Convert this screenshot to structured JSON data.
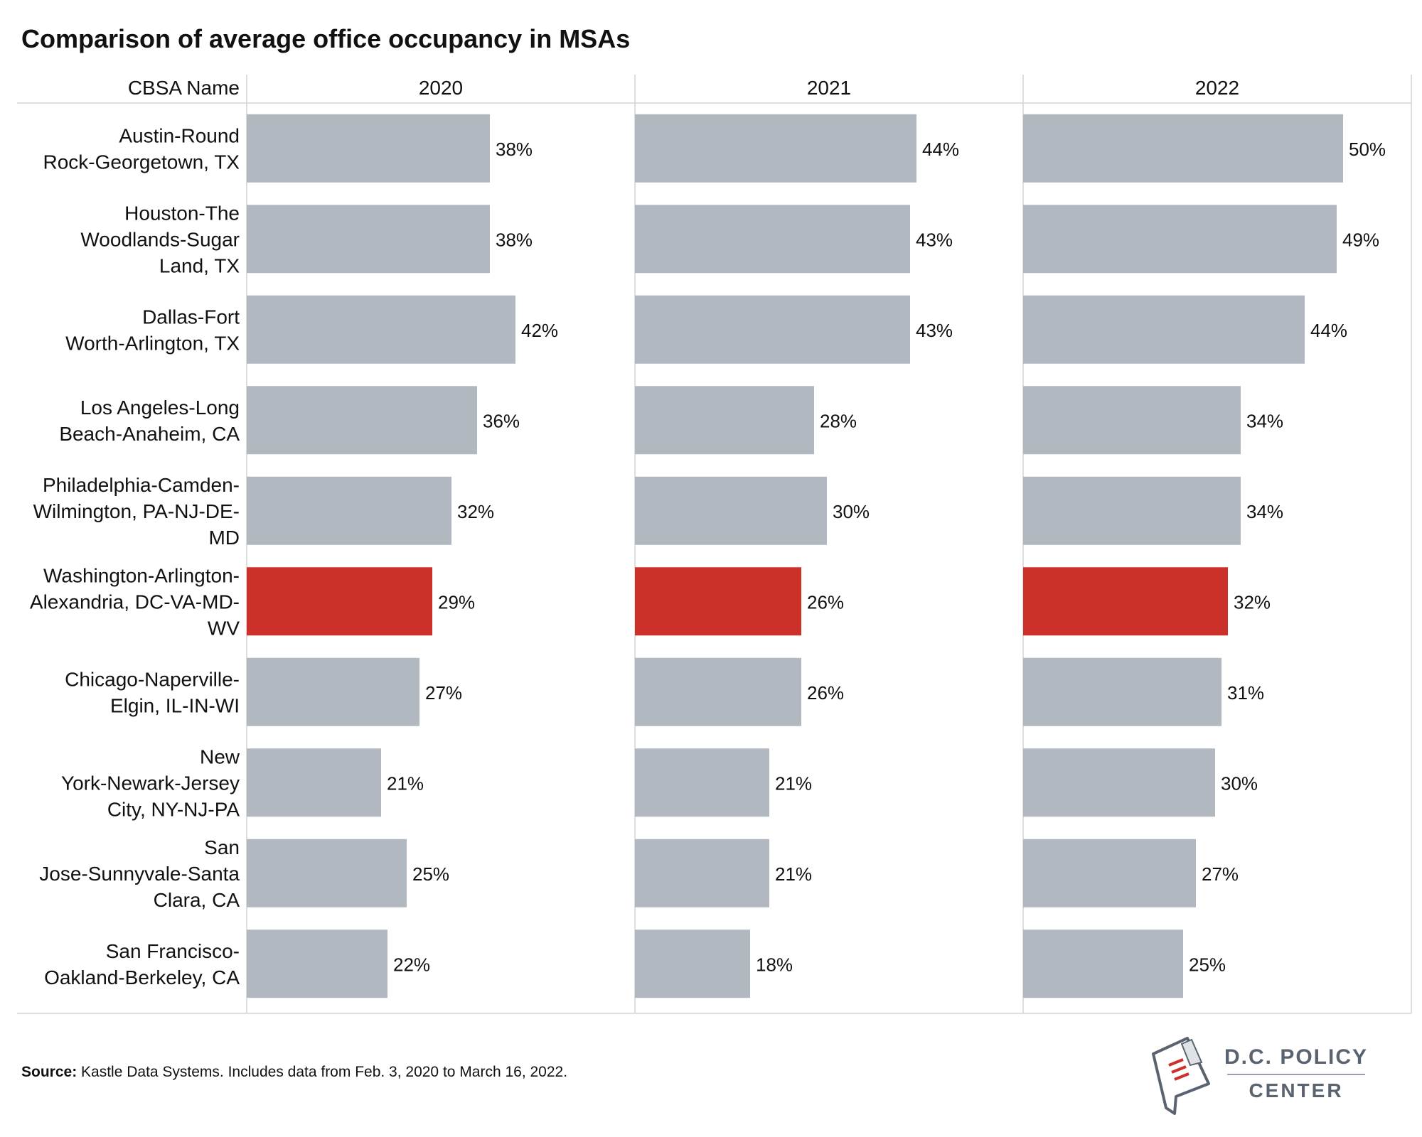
{
  "title": "Comparison of average office occupancy in MSAs",
  "source": {
    "label": "Source:",
    "text": " Kastle Data Systems. Includes data from Feb. 3, 2020 to March 16, 2022."
  },
  "logo": {
    "line1": "D.C. POLICY",
    "line2": "CENTER"
  },
  "colors": {
    "default_bar": "#b1b8bf",
    "highlight_bar": "#cb3029",
    "grid": "#d4d4d4"
  },
  "chart_data": {
    "type": "bar",
    "orientation": "horizontal",
    "category_header": "CBSA Name",
    "categories": [
      [
        "Austin-Round",
        "Rock-Georgetown, TX"
      ],
      [
        "Houston-The",
        "Woodlands-Sugar",
        "Land, TX"
      ],
      [
        "Dallas-Fort",
        "Worth-Arlington, TX"
      ],
      [
        "Los Angeles-Long",
        "Beach-Anaheim, CA"
      ],
      [
        "Philadelphia-Camden-",
        "Wilmington, PA-NJ-DE-",
        "MD"
      ],
      [
        "Washington-Arlington-",
        "Alexandria, DC-VA-MD-",
        "WV"
      ],
      [
        "Chicago-Naperville-",
        "Elgin, IL-IN-WI"
      ],
      [
        "New",
        "York-Newark-Jersey",
        "City, NY-NJ-PA"
      ],
      [
        "San",
        "Jose-Sunnyvale-Santa",
        "Clara, CA"
      ],
      [
        "San Francisco-",
        "Oakland-Berkeley, CA"
      ]
    ],
    "highlight_index": 5,
    "value_format": "percent",
    "xlim": [
      0,
      60
    ],
    "series": [
      {
        "name": "2020",
        "values": [
          38,
          38,
          42,
          36,
          32,
          29,
          27,
          21,
          25,
          22
        ]
      },
      {
        "name": "2021",
        "values": [
          44,
          43,
          43,
          28,
          30,
          26,
          26,
          21,
          21,
          18
        ]
      },
      {
        "name": "2022",
        "values": [
          50,
          49,
          44,
          34,
          34,
          32,
          31,
          30,
          27,
          25
        ]
      }
    ],
    "grid": true,
    "legend": "none"
  }
}
